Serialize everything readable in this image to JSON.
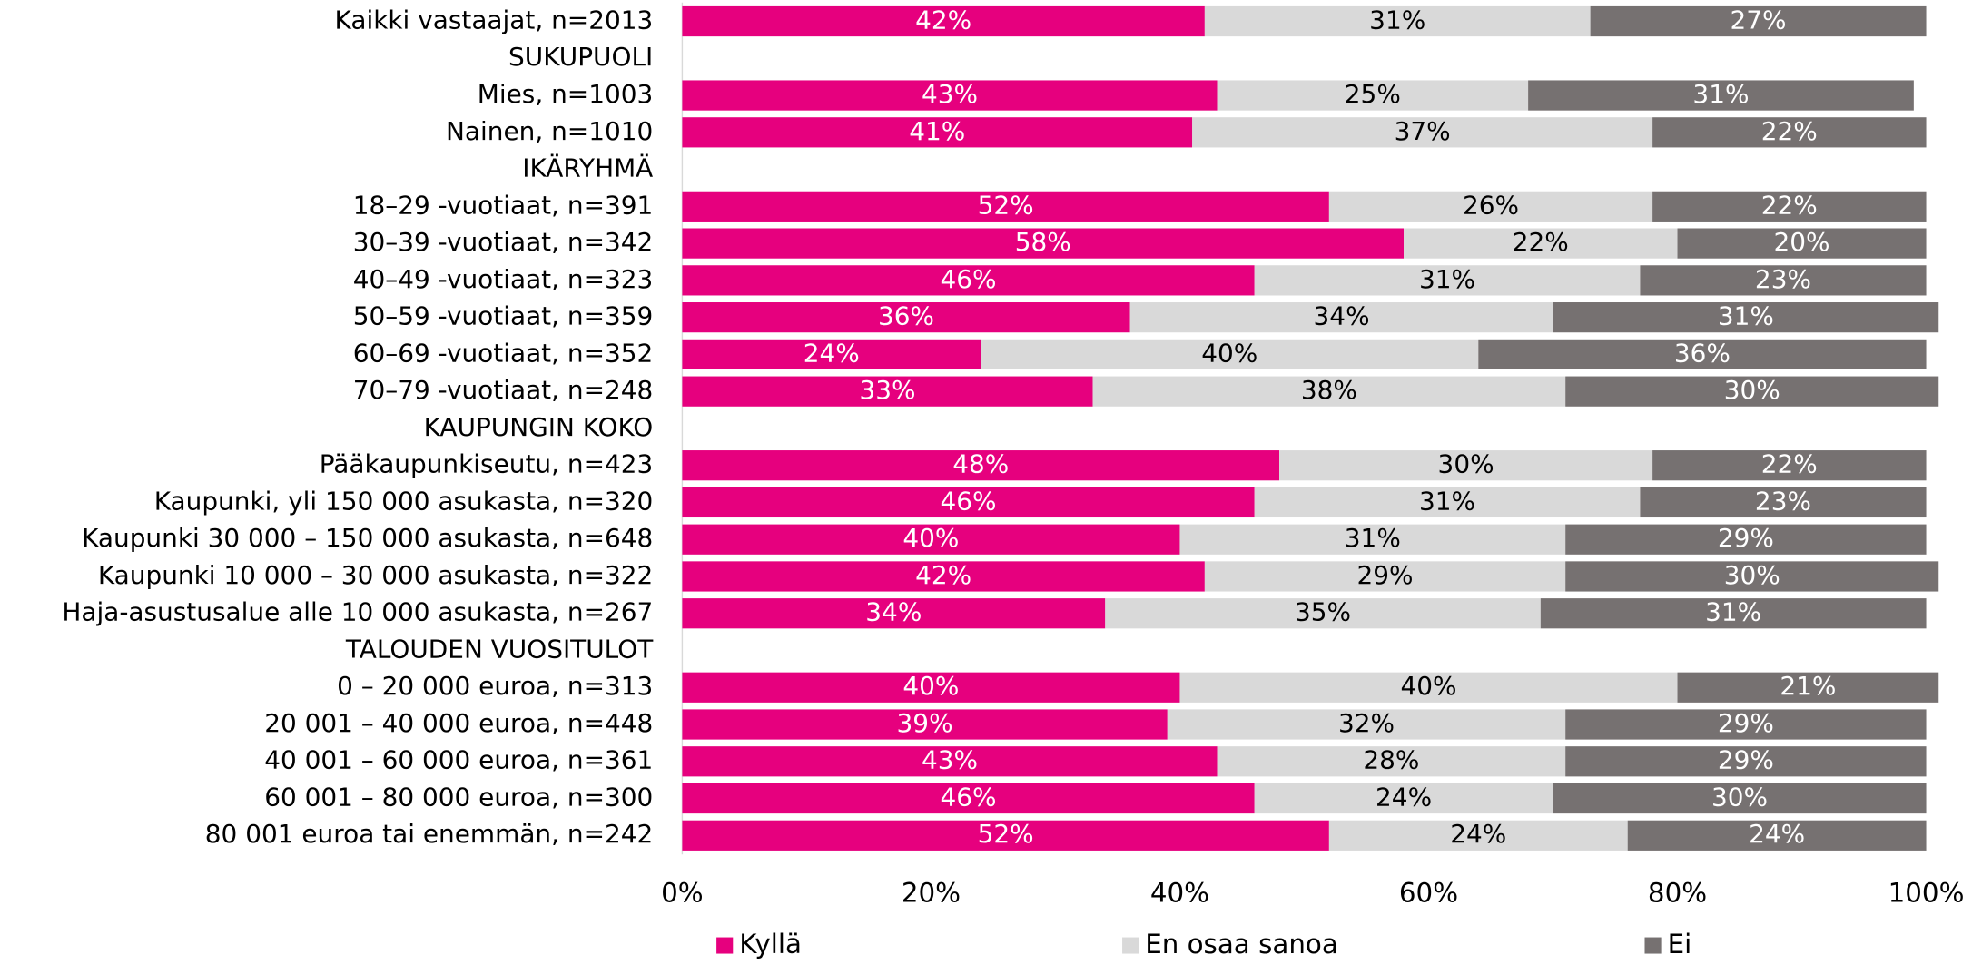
{
  "chart_data": {
    "type": "stacked_bar_horizontal",
    "categories": [
      "Kaikki vastaajat, n=2013",
      "SUKUPUOLI",
      "Mies, n=1003",
      "Nainen, n=1010",
      "IKÄRYHMÄ",
      "18–29 -vuotiaat, n=391",
      "30–39 -vuotiaat, n=342",
      "40–49 -vuotiaat, n=323",
      "50–59 -vuotiaat, n=359",
      "60–69 -vuotiaat, n=352",
      "70–79 -vuotiaat, n=248",
      "KAUPUNGIN KOKO",
      "Pääkaupunkiseutu, n=423",
      "Kaupunki, yli 150 000 asukasta, n=320",
      "Kaupunki 30 000 – 150 000 asukasta, n=648",
      "Kaupunki 10 000 – 30 000 asukasta, n=322",
      "Haja-asustusalue alle 10 000 asukasta, n=267",
      "TALOUDEN VUOSITULOT",
      "0 – 20 000 euroa, n=313",
      "20 001 – 40 000 euroa, n=448",
      "40 001 – 60 000 euroa, n=361",
      "60 001 – 80 000 euroa, n=300",
      "80 001 euroa tai enemmän, n=242"
    ],
    "series": [
      {
        "name": "Kyllä",
        "color": "#e6007e",
        "label_color": "#ffffff",
        "values": [
          42,
          null,
          43,
          41,
          null,
          52,
          58,
          46,
          36,
          24,
          33,
          null,
          48,
          46,
          40,
          42,
          34,
          null,
          40,
          39,
          43,
          46,
          52
        ],
        "value_labels": [
          "42%",
          null,
          "43%",
          "41%",
          null,
          "52%",
          "58%",
          "46%",
          "36%",
          "24%",
          "33%",
          null,
          "48%",
          "46%",
          "40%",
          "42%",
          "34%",
          null,
          "40%",
          "39%",
          "43%",
          "46%",
          "52%"
        ]
      },
      {
        "name": "En osaa sanoa",
        "color": "#d9d9d9",
        "label_color": "#000000",
        "values": [
          31,
          null,
          25,
          37,
          null,
          26,
          22,
          31,
          34,
          40,
          38,
          null,
          30,
          31,
          31,
          29,
          35,
          null,
          40,
          32,
          28,
          24,
          24
        ],
        "value_labels": [
          "31%",
          null,
          "25%",
          "37%",
          null,
          "26%",
          "22%",
          "31%",
          "34%",
          "40%",
          "38%",
          null,
          "30%",
          "31%",
          "31%",
          "29%",
          "35%",
          null,
          "40%",
          "32%",
          "28%",
          "24%",
          "24%"
        ]
      },
      {
        "name": "Ei",
        "color": "#767171",
        "label_color": "#ffffff",
        "values": [
          27,
          null,
          31,
          22,
          null,
          22,
          20,
          23,
          31,
          36,
          30,
          null,
          22,
          23,
          29,
          30,
          31,
          null,
          21,
          29,
          29,
          30,
          24
        ],
        "value_labels": [
          "27%",
          null,
          "31%",
          "22%",
          null,
          "22%",
          "20%",
          "23%",
          "31%",
          "36%",
          "30%",
          null,
          "22%",
          "23%",
          "29%",
          "30%",
          "31%",
          null,
          "21%",
          "29%",
          "29%",
          "30%",
          "24%"
        ]
      }
    ],
    "xlim": [
      0,
      100
    ],
    "xticks": [
      {
        "value": 0,
        "label": "0%"
      },
      {
        "value": 20,
        "label": "20%"
      },
      {
        "value": 40,
        "label": "40%"
      },
      {
        "value": 60,
        "label": "60%"
      },
      {
        "value": 80,
        "label": "80%"
      },
      {
        "value": 100,
        "label": "100%"
      }
    ],
    "legend": "bottom"
  }
}
